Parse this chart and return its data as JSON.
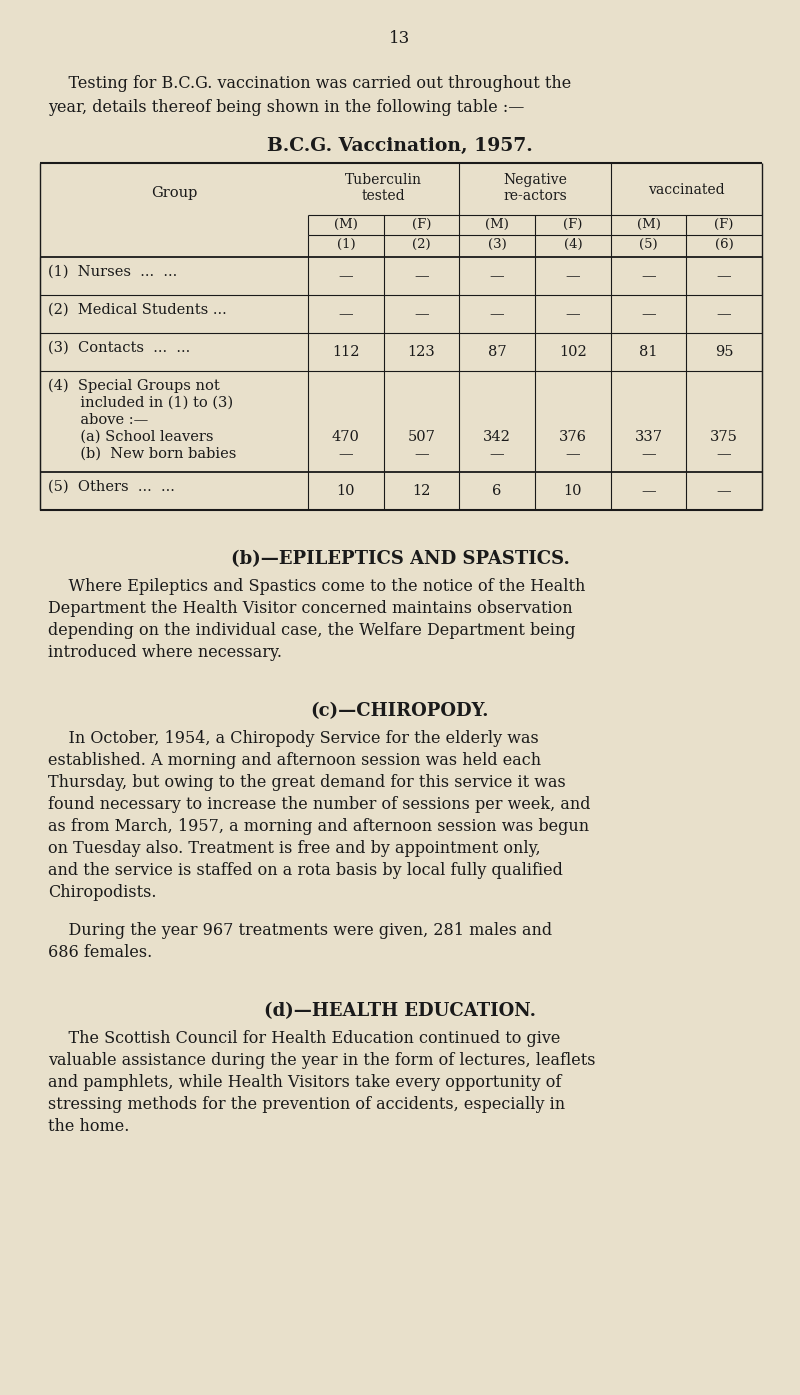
{
  "bg_color": "#e8e0cb",
  "text_color": "#1a1a1a",
  "page_number": "13",
  "table_title": "B.C.G. Vaccination, 1957.",
  "group_label": "Group",
  "section_b_title": "(b)—EPILEPTICS AND SPASTICS.",
  "section_b_lines": [
    "    Where Epileptics and Spastics come to the notice of the Health",
    "Department the Health Visitor concerned maintains observation",
    "depending on the individual case, the Welfare Department being",
    "introduced where necessary."
  ],
  "section_c_title": "(c)—CHIROPODY.",
  "section_c_lines": [
    "    In October, 1954, a Chiropody Service for the elderly was",
    "established. A morning and afternoon session was held each",
    "Thursday, but owing to the great demand for this service it was",
    "found necessary to increase the number of sessions per week, and",
    "as from March, 1957, a morning and afternoon session was begun",
    "on Tuesday also. Treatment is free and by appointment only,",
    "and the service is staffed on a rota basis by local fully qualified",
    "Chiropodists."
  ],
  "section_c2_lines": [
    "    During the year 967 treatments were given, 281 males and",
    "686 females."
  ],
  "section_d_title": "(d)—HEALTH EDUCATION.",
  "section_d_lines": [
    "    The Scottish Council for Health Education continued to give",
    "valuable assistance during the year in the form of lectures, leaflets",
    "and pamphlets, while Health Visitors take every opportunity of",
    "stressing methods for the prevention of accidents, especially in",
    "the home."
  ],
  "intro_lines": [
    "    Testing for B.C.G. vaccination was carried out throughout the",
    "year, details thereof being shown in the following table :—"
  ]
}
